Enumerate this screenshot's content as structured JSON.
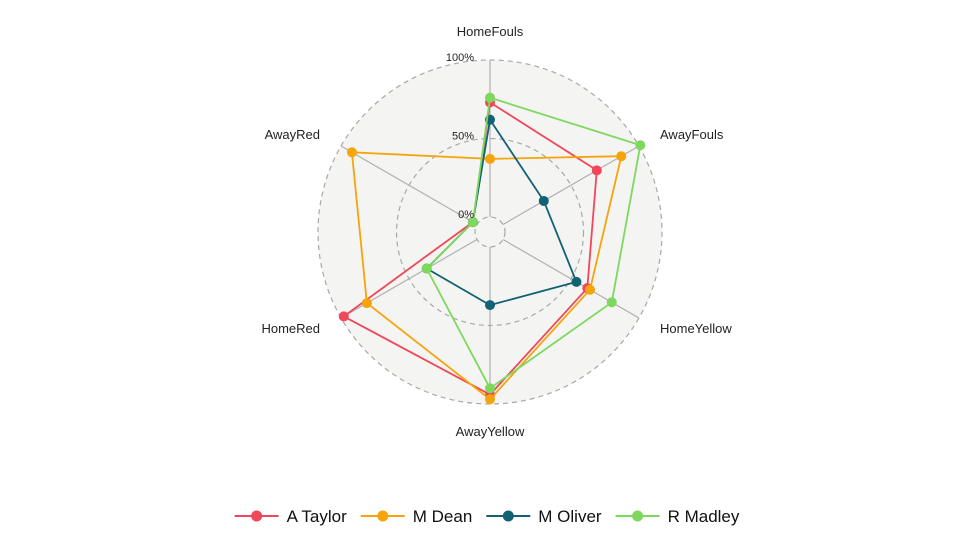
{
  "chart_data": {
    "type": "radar",
    "axes": [
      "HomeFouls",
      "AwayFouls",
      "HomeYellow",
      "AwayYellow",
      "HomeRed",
      "AwayRed"
    ],
    "grid_levels": [
      0,
      0.5,
      1.0
    ],
    "grid_labels": [
      "0%",
      "50%",
      "100%"
    ],
    "legend_position": "bottom",
    "series": [
      {
        "name": "A Taylor",
        "color": "#f0475a",
        "values": [
          0.73,
          0.69,
          0.62,
          0.94,
          0.98,
          0.03
        ]
      },
      {
        "name": "M Dean",
        "color": "#f5a40c",
        "values": [
          0.37,
          0.87,
          0.64,
          0.97,
          0.81,
          0.92
        ]
      },
      {
        "name": "M Oliver",
        "color": "#116272",
        "values": [
          0.62,
          0.3,
          0.54,
          0.37,
          0.37,
          0.03
        ]
      },
      {
        "name": "R Madley",
        "color": "#7ed85e",
        "values": [
          0.76,
          1.01,
          0.8,
          0.9,
          0.37,
          0.03
        ]
      }
    ]
  }
}
